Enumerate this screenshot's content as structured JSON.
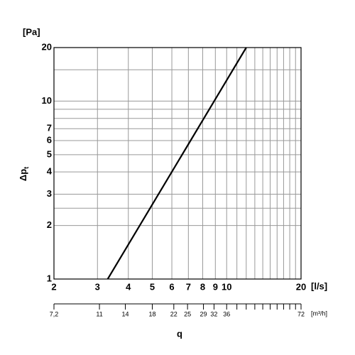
{
  "chart_data": {
    "type": "line",
    "log_scale": true,
    "grid": true,
    "color": "#000000",
    "y_unit": "[Pa]",
    "y_label": "Δp",
    "y_label_subscript": "t",
    "x_unit": "[l/s]",
    "x_label": "q",
    "x2_unit": "[m³/h]",
    "x": [
      3.3,
      12
    ],
    "values": [
      1,
      20
    ],
    "xlim": [
      2,
      20
    ],
    "xticks": [
      2,
      3,
      4,
      5,
      6,
      7,
      8,
      9,
      10,
      20
    ],
    "x_minor_gridlines": [
      11,
      12,
      13,
      14,
      15,
      16,
      17,
      18,
      19
    ],
    "ylim": [
      1,
      20
    ],
    "yticks": [
      1,
      2,
      3,
      4,
      5,
      6,
      7,
      10,
      20
    ],
    "y_minor_gridlines": [
      2.5,
      8,
      9,
      15
    ],
    "x2lim": [
      7.2,
      72
    ],
    "x2ticks": [
      {
        "value": 7.2,
        "label": "7,2"
      },
      11,
      14,
      18,
      22,
      25,
      29,
      32,
      36,
      72
    ],
    "x2_minor_ticks": [
      39.6,
      43.2,
      46.8,
      50.4,
      54,
      57.6,
      61.2,
      64.8,
      68.4
    ]
  }
}
